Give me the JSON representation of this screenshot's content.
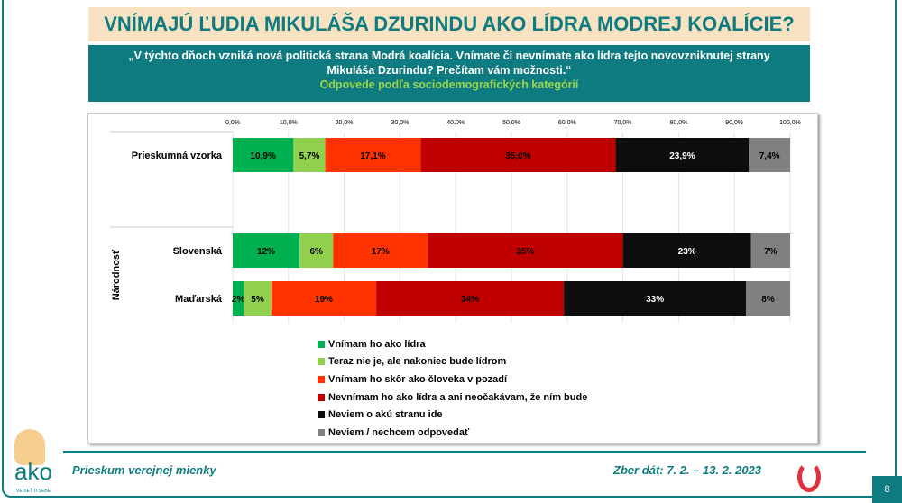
{
  "header": {
    "title": "VNÍMAJÚ ĽUDIA MIKULÁŠA DZURINDU AKO LÍDRA MODREJ KOALÍCIE?"
  },
  "question": {
    "text": "„V týchto dňoch vzniká nová politická strana Modrá koalícia. Vnímate či nevnímate ako lídra tejto novovzniknutej strany Mikuláša Dzurindu? Prečítam vám možnosti.“",
    "subtitle": "Odpovede podľa sociodemografických kategórií"
  },
  "chart_data": {
    "type": "bar",
    "orientation": "horizontal",
    "stacked": true,
    "xlim": [
      0,
      100
    ],
    "ticks": [
      "0,0%",
      "10,0%",
      "20,0%",
      "30,0%",
      "40,0%",
      "50,0%",
      "60,0%",
      "70,0%",
      "80,0%",
      "90,0%",
      "100,0%"
    ],
    "group_label": "Národnosť",
    "categories": [
      "Prieskumná vzorka",
      "Slovenská",
      "Maďarská"
    ],
    "series": [
      {
        "name": "Vnímam ho ako lídra",
        "color": "#00b050",
        "values": [
          10.9,
          12,
          2
        ],
        "labels": [
          "10,9%",
          "12%",
          "2%"
        ]
      },
      {
        "name": "Teraz nie je, ale nakoniec bude lídrom",
        "color": "#92d050",
        "values": [
          5.7,
          6,
          5
        ],
        "labels": [
          "5,7%",
          "6%",
          "5%"
        ]
      },
      {
        "name": "Vnímam ho skôr ako človeka v pozadí",
        "color": "#ff3300",
        "values": [
          17.1,
          17,
          19
        ],
        "labels": [
          "17,1%",
          "17%",
          "19%"
        ]
      },
      {
        "name": "Nevnímam ho ako lídra a ani neočakávam, že ním bude",
        "color": "#c00000",
        "values": [
          35.0,
          35,
          34
        ],
        "labels": [
          "35,0%",
          "35%",
          "34%"
        ]
      },
      {
        "name": "Neviem o akú stranu ide",
        "color": "#0d0d0d",
        "values": [
          23.9,
          23,
          33
        ],
        "labels": [
          "23,9%",
          "23%",
          "33%"
        ]
      },
      {
        "name": "Neviem / nechcem odpovedať",
        "color": "#808080",
        "values": [
          7.4,
          7,
          8
        ],
        "labels": [
          "7,4%",
          "7%",
          "8%"
        ]
      }
    ]
  },
  "footer": {
    "left": "Prieskum verejnej mienky",
    "right": "Zber dát: 7. 2. – 13. 2. 2023",
    "page": "8",
    "logo_text": "ako",
    "logo_tagline": "VEDIEŤ O SEBE"
  }
}
